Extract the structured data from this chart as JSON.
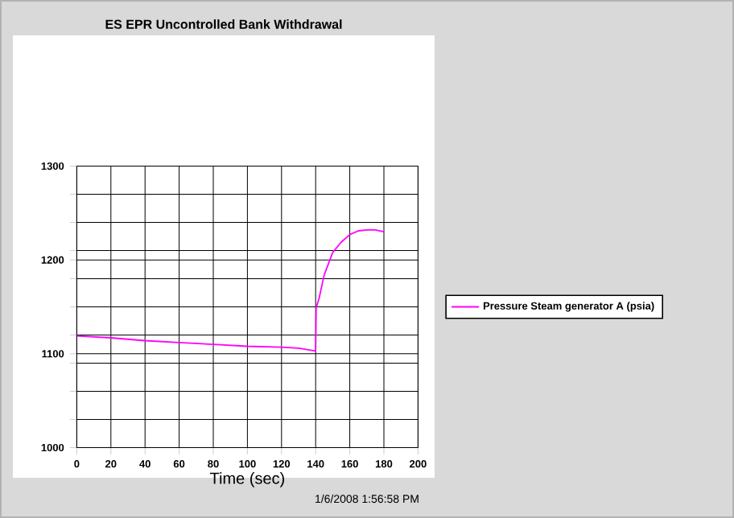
{
  "chart_data": {
    "type": "line",
    "title": "ES EPR Uncontrolled Bank Withdrawal",
    "xlabel": "Time (sec)",
    "series": [
      {
        "name": "Pressure Steam generator A (psia)",
        "color": "#ff00ff",
        "x": [
          0,
          20,
          40,
          60,
          80,
          100,
          120,
          130,
          140,
          140.3,
          142,
          145,
          150,
          155,
          160,
          165,
          170,
          175,
          180
        ],
        "values": [
          1119,
          1117,
          1114,
          1112,
          1110,
          1108,
          1107,
          1106,
          1103,
          1149,
          1159,
          1184,
          1208,
          1219,
          1227,
          1231,
          1232,
          1232,
          1230
        ]
      }
    ],
    "xlim": [
      0,
      200
    ],
    "xticks": [
      0,
      20,
      40,
      60,
      80,
      100,
      120,
      140,
      160,
      180,
      200
    ],
    "ylim": [
      1000,
      1300
    ],
    "yticks": [
      1000,
      {
        "value": 1030,
        "label": null
      },
      {
        "value": 1060,
        "label": null
      },
      {
        "value": 1090,
        "label": null
      },
      1100,
      {
        "value": 1120,
        "label": null
      },
      {
        "value": 1150,
        "label": null
      },
      {
        "value": 1180,
        "label": null
      },
      1200,
      {
        "value": 1210,
        "label": null
      },
      {
        "value": 1240,
        "label": null
      },
      {
        "value": 1270,
        "label": null
      },
      1300
    ],
    "grid": true,
    "legend": "right",
    "marker": "none",
    "line_style": "solid",
    "annotations": [
      "1/6/2008 1:56:58 PM"
    ]
  }
}
